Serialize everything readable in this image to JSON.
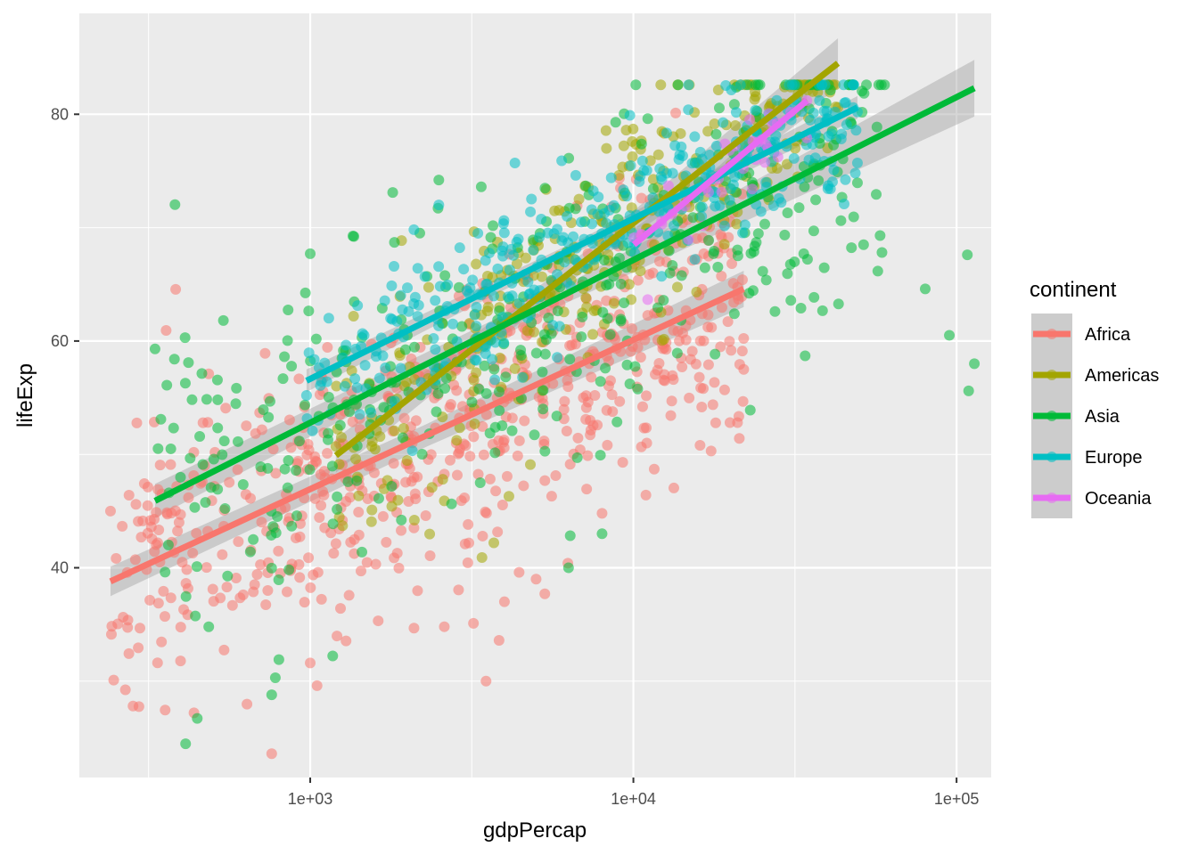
{
  "chart_data": {
    "type": "scatter",
    "xlabel": "gdpPercap",
    "ylabel": "lifeExp",
    "x_scale": "log10",
    "xlim": [
      193,
      128000
    ],
    "ylim": [
      21.5,
      88.9
    ],
    "x_ticks": [
      {
        "value": 1000,
        "label": "1e+03"
      },
      {
        "value": 10000,
        "label": "1e+04"
      },
      {
        "value": 100000,
        "label": "1e+05"
      }
    ],
    "x_minor_gridlines": [
      316,
      3162,
      31623
    ],
    "y_ticks": [
      {
        "value": 40,
        "label": "40"
      },
      {
        "value": 60,
        "label": "60"
      },
      {
        "value": 80,
        "label": "80"
      }
    ],
    "y_minor_gridlines": [
      30,
      50,
      70
    ],
    "grid": true,
    "background": "#ebebeb",
    "point_alpha": 0.55,
    "legend": {
      "title": "continent",
      "placement": "right",
      "entries": [
        "Africa",
        "Americas",
        "Asia",
        "Europe",
        "Oceania"
      ]
    },
    "series": [
      {
        "name": "Africa",
        "color": "#F8766D",
        "trend": {
          "x": [
            241,
            21950
          ],
          "y": [
            38.8,
            64.6
          ]
        },
        "band_halfwidth": [
          1.3,
          1.0,
          1.6
        ],
        "cloud": {
          "x_range": [
            241,
            21950
          ],
          "n": 620,
          "sd": 6.5,
          "seed": 11
        },
        "points": [
          [
            241,
            45.0
          ],
          [
            275,
            46.4
          ],
          [
            300,
            42.7
          ],
          [
            1000,
            31.6
          ],
          [
            3500,
            30.0
          ],
          [
            760,
            23.6
          ],
          [
            1050,
            29.6
          ],
          [
            3840,
            33.6
          ],
          [
            3200,
            35.1
          ],
          [
            2600,
            34.8
          ],
          [
            3990,
            37.0
          ],
          [
            4430,
            39.6
          ],
          [
            5000,
            39.0
          ],
          [
            5320,
            37.7
          ],
          [
            6270,
            40.4
          ],
          [
            6400,
            57.3
          ],
          [
            7000,
            55.0
          ],
          [
            7350,
            53.0
          ],
          [
            7600,
            55.2
          ],
          [
            8000,
            44.8
          ],
          [
            9270,
            49.3
          ],
          [
            11000,
            51.0
          ],
          [
            11600,
            48.7
          ],
          [
            12500,
            56.5
          ],
          [
            13300,
            56.6
          ],
          [
            17400,
            50.3
          ],
          [
            19900,
            52.8
          ],
          [
            21000,
            52.8
          ],
          [
            21950,
            57.5
          ],
          [
            11500,
            66.0
          ],
          [
            12800,
            62.7
          ]
        ]
      },
      {
        "name": "Americas",
        "color": "#A3A500",
        "trend": {
          "x": [
            1201,
            42952
          ],
          "y": [
            49.9,
            84.5
          ]
        },
        "band_halfwidth": [
          1.5,
          0.8,
          2.2
        ],
        "cloud": {
          "x_range": [
            1201,
            42952
          ],
          "n": 300,
          "sd": 4.5,
          "seed": 22
        },
        "points": [
          [
            1201,
            50.7
          ],
          [
            1400,
            48.0
          ],
          [
            2100,
            44.2
          ],
          [
            2600,
            45.9
          ],
          [
            3400,
            40.9
          ],
          [
            3700,
            42.2
          ],
          [
            4120,
            46.3
          ],
          [
            4800,
            49.1
          ],
          [
            9500,
            78.6
          ],
          [
            14000,
            78.3
          ],
          [
            17000,
            78.5
          ],
          [
            20000,
            75.5
          ],
          [
            27000,
            77.1
          ],
          [
            33000,
            80.7
          ],
          [
            42952,
            80.6
          ]
        ]
      },
      {
        "name": "Asia",
        "color": "#00BA38",
        "trend": {
          "x": [
            331,
            113523
          ],
          "y": [
            45.9,
            82.3
          ]
        },
        "band_halfwidth": [
          1.5,
          0.8,
          2.5
        ],
        "cloud": {
          "x_range": [
            331,
            60000
          ],
          "n": 380,
          "sd": 7.0,
          "seed": 33
        },
        "points": [
          [
            331,
            59.3
          ],
          [
            345,
            53.1
          ],
          [
            360,
            56.1
          ],
          [
            380,
            58.4
          ],
          [
            410,
            60.3
          ],
          [
            420,
            58.1
          ],
          [
            760,
            28.8
          ],
          [
            780,
            30.3
          ],
          [
            800,
            31.9
          ],
          [
            1000,
            67.7
          ],
          [
            1800,
            73.1
          ],
          [
            2500,
            74.2
          ],
          [
            6300,
            40.0
          ],
          [
            8000,
            43.0
          ],
          [
            23000,
            53.9
          ],
          [
            33000,
            62.9
          ],
          [
            34000,
            58.7
          ],
          [
            58000,
            69.3
          ],
          [
            80000,
            64.6
          ],
          [
            95000,
            60.5
          ],
          [
            109000,
            55.6
          ],
          [
            108000,
            67.6
          ],
          [
            113523,
            58.0
          ],
          [
            30000,
            71.3
          ],
          [
            35000,
            80.5
          ],
          [
            24000,
            68.7
          ]
        ]
      },
      {
        "name": "Europe",
        "color": "#00BFC4",
        "trend": {
          "x": [
            974,
            49357
          ],
          "y": [
            56.5,
            80.6
          ]
        },
        "band_halfwidth": [
          1.0,
          0.5,
          1.0
        ],
        "cloud": {
          "x_range": [
            974,
            49357
          ],
          "n": 360,
          "sd": 3.6,
          "seed": 44
        },
        "points": [
          [
            974,
            55.2
          ],
          [
            1600,
            59.1
          ],
          [
            2500,
            72.0
          ],
          [
            3500,
            65.0
          ],
          [
            4300,
            75.7
          ],
          [
            6000,
            75.9
          ],
          [
            49357,
            80.2
          ],
          [
            45000,
            81.0
          ],
          [
            40000,
            79.6
          ]
        ]
      },
      {
        "name": "Oceania",
        "color": "#E76BF3",
        "trend": {
          "x": [
            10040,
            34435
          ],
          "y": [
            68.5,
            81.2
          ]
        },
        "band_halfwidth": [
          1.4,
          0.7,
          1.4
        ],
        "cloud": {
          "x_range": [
            10040,
            34435
          ],
          "n": 24,
          "sd": 2.2,
          "seed": 55
        },
        "points": [
          [
            10040,
            69.1
          ],
          [
            10557,
            69.4
          ],
          [
            12247,
            70.3
          ],
          [
            13176,
            71.2
          ],
          [
            14463,
            71.9
          ],
          [
            16789,
            73.5
          ],
          [
            18334,
            74.3
          ],
          [
            21888,
            75.2
          ],
          [
            23425,
            77.6
          ],
          [
            26997,
            79.1
          ],
          [
            30687,
            80.2
          ],
          [
            34435,
            81.2
          ]
        ]
      }
    ]
  }
}
